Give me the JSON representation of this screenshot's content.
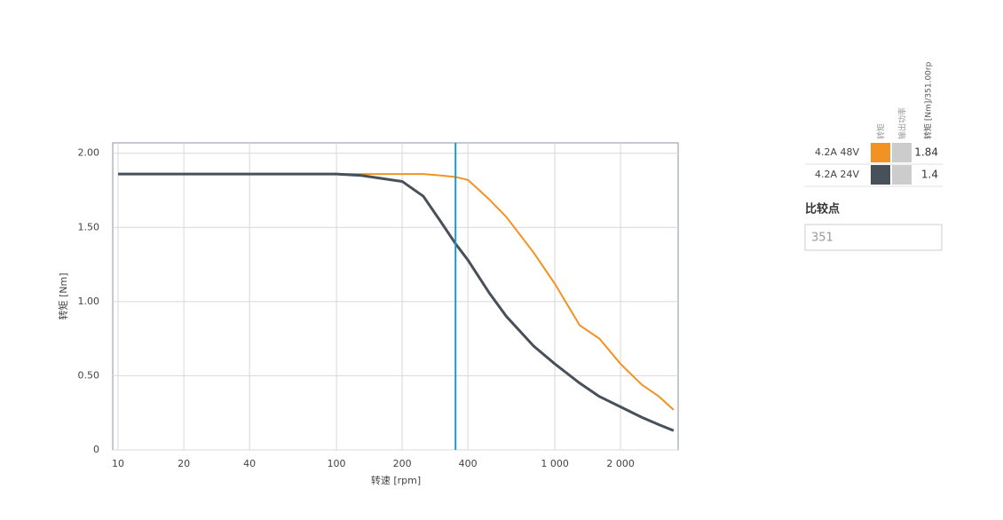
{
  "chart_data": {
    "type": "line",
    "xlabel": "转速 [rpm]",
    "ylabel": "转矩 [Nm]",
    "log_x": true,
    "grid": true,
    "x": [
      10,
      20,
      40,
      100,
      130,
      200,
      250,
      300,
      351,
      400,
      500,
      600,
      800,
      1000,
      1300,
      1600,
      2000,
      2500,
      3000,
      3500
    ],
    "series": [
      {
        "name": "4.2A 48V",
        "color": "#f39222",
        "values": [
          1.86,
          1.86,
          1.86,
          1.86,
          1.86,
          1.86,
          1.86,
          1.85,
          1.84,
          1.82,
          1.69,
          1.57,
          1.33,
          1.12,
          0.84,
          0.75,
          0.58,
          0.44,
          0.36,
          0.27
        ]
      },
      {
        "name": "4.2A 24V",
        "color": "#48505a",
        "values": [
          1.86,
          1.86,
          1.86,
          1.86,
          1.85,
          1.81,
          1.71,
          1.54,
          1.39,
          1.28,
          1.06,
          0.9,
          0.7,
          0.58,
          0.45,
          0.36,
          0.29,
          0.22,
          0.17,
          0.13
        ]
      }
    ],
    "xlim": [
      9.45,
      3670
    ],
    "ylim": [
      0,
      2.07
    ],
    "xticks": [
      10,
      20,
      40,
      100,
      200,
      400,
      {
        "value": 1000,
        "label": "1 000"
      },
      {
        "value": 2000,
        "label": "2 000"
      }
    ],
    "yticks": [
      0,
      {
        "value": 0.5,
        "label": "0.50"
      },
      {
        "value": 1,
        "label": "1.00"
      },
      {
        "value": 1.5,
        "label": "1.50"
      },
      {
        "value": 2,
        "label": "2.00"
      }
    ]
  },
  "panel": {
    "columns": [
      "转矩",
      "输出功率",
      "转矩 [Nm]/351.00rp"
    ],
    "rows": [
      {
        "label": "4.2A 48V",
        "value": 1.84
      },
      {
        "label": "4.2A 24V",
        "value": 1.4
      }
    ],
    "compare_point": {
      "label": "比较点",
      "value": 351
    }
  }
}
